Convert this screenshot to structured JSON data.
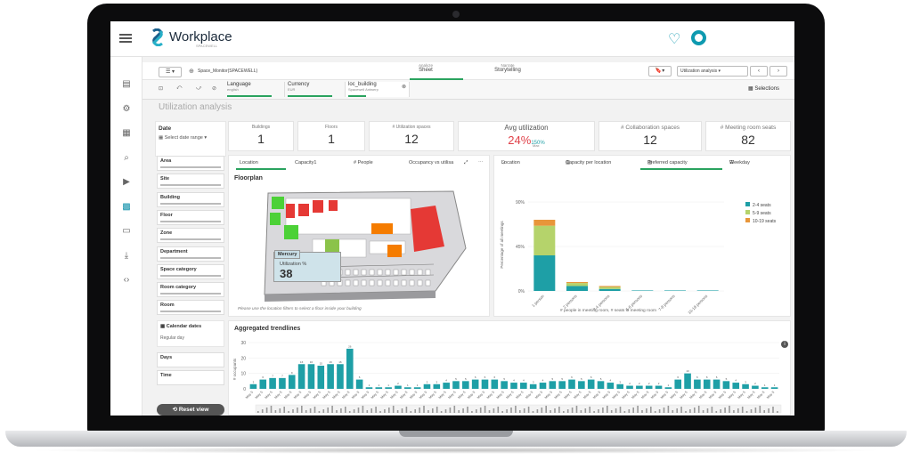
{
  "app": {
    "brand": "Workplace",
    "brand_sub": "SPACEWELL"
  },
  "nav_icons": [
    "bar-chart-icon",
    "calendar-gear-icon",
    "calendar-icon",
    "search-zoom-icon",
    "play-icon",
    "dashboard-icon",
    "monitor-icon",
    "download-icon",
    "code-icon"
  ],
  "toolbar": {
    "app_name": "Space_Monitor(SPACEWELL)",
    "tab_analyze_top": "Analyze",
    "tab_analyze": "Sheet",
    "tab_narrate_top": "Narrate",
    "tab_narrate": "Storytelling",
    "sheet_name": "Utilization analysis",
    "selections_label": "Selections",
    "prev": "‹",
    "next": "›"
  },
  "selections": [
    {
      "field": "Language",
      "value": "english"
    },
    {
      "field": "Currency",
      "value": "EUR"
    },
    {
      "field": "loc_building",
      "value": "Spacewell Antwerp"
    }
  ],
  "page_title": "Utilization analysis",
  "date": {
    "label": "Date",
    "placeholder": "Select date range"
  },
  "filters": [
    "Area",
    "Site",
    "Building",
    "Floor",
    "Zone",
    "Department",
    "Space category",
    "Room category",
    "Room"
  ],
  "calendar": {
    "label": "Calendar dates",
    "value": "Regular day"
  },
  "filters2": [
    "Days",
    "Time"
  ],
  "reset_label": "Reset view",
  "kpis": [
    {
      "label": "Buildings",
      "value": "1"
    },
    {
      "label": "Floors",
      "value": "1"
    },
    {
      "label": "# Utilization spaces",
      "value": "12"
    },
    {
      "label": "# Collaboration spaces",
      "value": "12"
    },
    {
      "label": "# Meeting room seats",
      "value": "82"
    }
  ],
  "avg_util": {
    "label": "Avg utilization",
    "value": "24%",
    "max_value": "150%",
    "max_label": "Max"
  },
  "floor_tabs": [
    "Location",
    "Capacity1",
    "# People",
    "Occupancy vs utilisa"
  ],
  "floorplan": {
    "title": "Floorplan",
    "tooltip_title": "Mercury",
    "tooltip_label": "Utilization %",
    "tooltip_value": "38",
    "hint": "Please use the location filters to select a floor inside your building"
  },
  "cap_tabs": [
    "Location",
    "Capacity per location",
    "Preferred capacity",
    "Weekday"
  ],
  "colors": {
    "teal": "#1e9fa6",
    "green_light": "#b5d36b",
    "orange": "#e8963a",
    "accent": "#2aa35f"
  },
  "chart_data": [
    {
      "type": "bar",
      "stacked": true,
      "ylabel": "Percentage of all meetings",
      "xlabel": "# people in meeting room, # seats in meeting room",
      "yticks": [
        "90%",
        "45%",
        "0%"
      ],
      "ylim": [
        0,
        90
      ],
      "categories": [
        "1 person",
        "2 persons",
        "3-4 persons",
        "5-6 persons",
        "7-8 persons",
        "10-18 persons"
      ],
      "series": [
        {
          "name": "2-4 seats",
          "color": "#1e9fa6",
          "values": [
            36,
            5,
            2,
            0.5,
            0.5,
            0.5
          ]
        },
        {
          "name": "5-9 seats",
          "color": "#b5d36b",
          "values": [
            30,
            3,
            2,
            0,
            0,
            0
          ]
        },
        {
          "name": "10-19 seats",
          "color": "#e8963a",
          "values": [
            6,
            1,
            1,
            0,
            0,
            0
          ]
        }
      ],
      "legend": "right"
    },
    {
      "type": "bar",
      "title": "Aggregated trendlines",
      "ylabel": "# occupants",
      "yticks": [
        "30",
        "20",
        "10",
        "0"
      ],
      "ylim": [
        0,
        30
      ],
      "category_label": "May 5",
      "values": [
        3,
        6,
        7,
        7,
        9,
        16,
        16,
        15,
        16,
        16,
        26,
        6,
        1,
        1,
        1,
        2,
        1,
        1,
        3,
        3,
        4,
        5,
        5,
        6,
        6,
        6,
        5,
        4,
        4,
        3,
        4,
        5,
        5,
        6,
        5,
        6,
        5,
        4,
        3,
        2,
        2,
        2,
        2,
        1,
        6,
        10,
        6,
        6,
        6,
        5,
        4,
        3,
        2,
        1,
        1
      ]
    }
  ],
  "aggregated_title": "Aggregated trendlines"
}
